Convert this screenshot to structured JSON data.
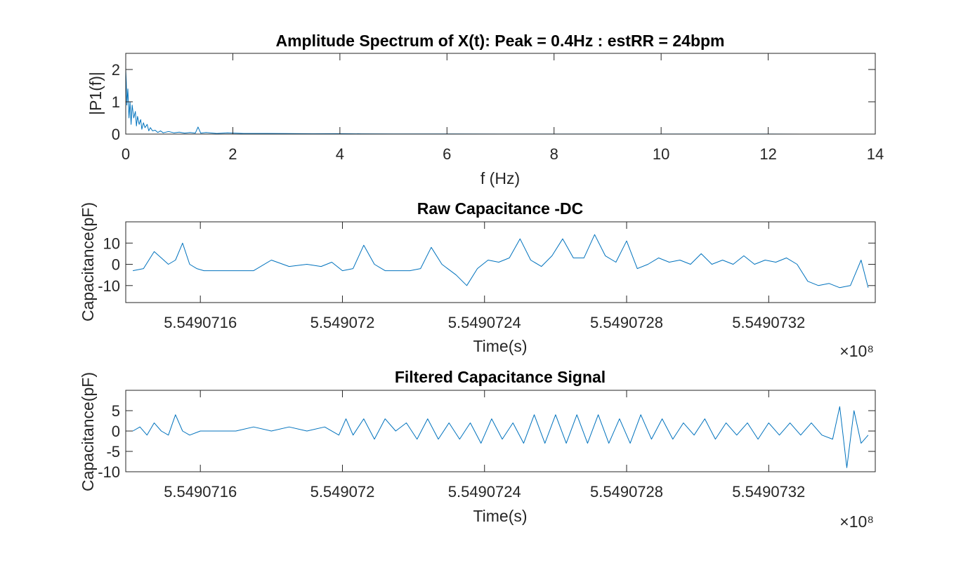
{
  "chart_data": [
    {
      "type": "line",
      "title": "Amplitude Spectrum of X(t): Peak = 0.4Hz : estRR = 24bpm",
      "xlabel": "f (Hz)",
      "ylabel": "|P1(f)|",
      "xlim": [
        0,
        14
      ],
      "ylim": [
        0,
        2.5
      ],
      "xticks": [
        0,
        2,
        4,
        6,
        8,
        10,
        12,
        14
      ],
      "xtick_labels": [
        "0",
        "2",
        "4",
        "6",
        "8",
        "10",
        "12",
        "14"
      ],
      "yticks": [
        0,
        1,
        2
      ],
      "ytick_labels": [
        "0",
        "1",
        "2"
      ],
      "exponent": "",
      "color": "#0072bd",
      "grid": false,
      "series": [
        {
          "x": [
            0,
            0.01,
            0.02,
            0.04,
            0.06,
            0.08,
            0.1,
            0.12,
            0.15,
            0.18,
            0.2,
            0.22,
            0.25,
            0.28,
            0.3,
            0.33,
            0.36,
            0.4,
            0.43,
            0.46,
            0.5,
            0.55,
            0.6,
            0.65,
            0.7,
            0.8,
            0.9,
            1.0,
            1.1,
            1.2,
            1.3,
            1.35,
            1.4,
            1.5,
            1.7,
            1.9,
            2.2,
            2.5,
            3.0,
            3.5,
            4.0,
            4.4,
            5.0,
            6.0,
            7.0,
            8.0,
            10.0,
            12.0,
            13.5
          ],
          "y": [
            2.0,
            1.6,
            0.9,
            1.4,
            0.5,
            1.0,
            0.3,
            0.9,
            0.5,
            0.7,
            0.25,
            0.55,
            0.3,
            0.45,
            0.15,
            0.35,
            0.2,
            0.3,
            0.1,
            0.2,
            0.1,
            0.12,
            0.05,
            0.1,
            0.04,
            0.08,
            0.04,
            0.06,
            0.03,
            0.05,
            0.03,
            0.22,
            0.03,
            0.05,
            0.02,
            0.04,
            0.02,
            0.02,
            0.015,
            0.01,
            0.012,
            0.008,
            0.005,
            0.004,
            0.003,
            0.003,
            0.002,
            0.002,
            0.001
          ]
        }
      ]
    },
    {
      "type": "line",
      "title": "Raw Capacitance -DC",
      "xlabel": "Time(s)",
      "ylabel": "Capacitance(pF)",
      "xlim": [
        554907139,
        554907350
      ],
      "ylim": [
        -18,
        20
      ],
      "xticks": [
        554907160,
        554907200,
        554907240,
        554907280,
        554907320
      ],
      "xtick_labels": [
        "5.5490716",
        "5.549072",
        "5.5490724",
        "5.5490728",
        "5.5490732"
      ],
      "yticks": [
        -10,
        0,
        10
      ],
      "ytick_labels": [
        "-10",
        "0",
        "10"
      ],
      "exponent": "×10⁸",
      "color": "#0072bd",
      "grid": false,
      "series": [
        {
          "x": [
            554907141,
            554907144,
            554907147,
            554907149,
            554907151,
            554907153,
            554907155,
            554907157,
            554907159,
            554907161,
            554907163,
            554907165,
            554907168,
            554907171,
            554907175,
            554907180,
            554907185,
            554907190,
            554907194,
            554907197,
            554907200,
            554907203,
            554907206,
            554907209,
            554907212,
            554907215,
            554907219,
            554907222,
            554907225,
            554907228,
            554907232,
            554907235,
            554907238,
            554907241,
            554907244,
            554907247,
            554907250,
            554907253,
            554907256,
            554907259,
            554907262,
            554907265,
            554907268,
            554907271,
            554907274,
            554907277,
            554907280,
            554907283,
            554907286,
            554907289,
            554907292,
            554907295,
            554907298,
            554907301,
            554907304,
            554907307,
            554907310,
            554907313,
            554907316,
            554907319,
            554907322,
            554907325,
            554907328,
            554907331,
            554907334,
            554907337,
            554907340,
            554907343,
            554907346,
            554907348
          ],
          "y": [
            -3,
            -2,
            6,
            3,
            0,
            2,
            10,
            0,
            -2,
            -3,
            -3,
            -3,
            -3,
            -3,
            -3,
            2,
            -1,
            0,
            -1,
            1,
            -3,
            -2,
            9,
            0,
            -3,
            -3,
            -3,
            -2,
            8,
            0,
            -5,
            -10,
            -2,
            2,
            1,
            3,
            12,
            2,
            -1,
            4,
            12,
            3,
            3,
            14,
            4,
            1,
            11,
            -2,
            0,
            3,
            1,
            2,
            0,
            5,
            0,
            2,
            0,
            4,
            0,
            2,
            1,
            3,
            0,
            -8,
            -10,
            -9,
            -11,
            -10,
            2,
            -11
          ]
        }
      ]
    },
    {
      "type": "line",
      "title": "Filtered Capacitance Signal",
      "xlabel": "Time(s)",
      "ylabel": "Capacitance(pF)",
      "xlim": [
        554907139,
        554907350
      ],
      "ylim": [
        -10,
        10
      ],
      "xticks": [
        554907160,
        554907200,
        554907240,
        554907280,
        554907320
      ],
      "xtick_labels": [
        "5.5490716",
        "5.549072",
        "5.5490724",
        "5.5490728",
        "5.5490732"
      ],
      "yticks": [
        -10,
        -5,
        0,
        5
      ],
      "ytick_labels": [
        "-10",
        "-5",
        "0",
        "5"
      ],
      "exponent": "×10⁸",
      "color": "#0072bd",
      "grid": false,
      "series": [
        {
          "x": [
            554907141,
            554907143,
            554907145,
            554907147,
            554907149,
            554907151,
            554907153,
            554907155,
            554907157,
            554907160,
            554907165,
            554907170,
            554907175,
            554907180,
            554907185,
            554907190,
            554907195,
            554907199,
            554907201,
            554907203,
            554907206,
            554907209,
            554907212,
            554907215,
            554907218,
            554907221,
            554907224,
            554907227,
            554907230,
            554907233,
            554907236,
            554907239,
            554907242,
            554907245,
            554907248,
            554907251,
            554907254,
            554907257,
            554907260,
            554907263,
            554907266,
            554907269,
            554907272,
            554907275,
            554907278,
            554907281,
            554907284,
            554907287,
            554907290,
            554907293,
            554907296,
            554907299,
            554907302,
            554907305,
            554907308,
            554907311,
            554907314,
            554907317,
            554907320,
            554907323,
            554907326,
            554907329,
            554907332,
            554907335,
            554907338,
            554907340,
            554907342,
            554907344,
            554907346,
            554907348
          ],
          "y": [
            0,
            1,
            -1,
            2,
            0,
            -1,
            4,
            0,
            -1,
            0,
            0,
            0,
            1,
            0,
            1,
            0,
            1,
            -1,
            3,
            -1,
            3,
            -2,
            3,
            0,
            2,
            -2,
            3,
            -2,
            2,
            -2,
            2,
            -3,
            3,
            -2,
            2,
            -3,
            4,
            -3,
            4,
            -3,
            4,
            -3,
            4,
            -3,
            3,
            -3,
            4,
            -2,
            3,
            -2,
            2,
            -1,
            3,
            -2,
            2,
            -1,
            2,
            -2,
            2,
            -1,
            2,
            -1,
            2,
            -1,
            -2,
            6,
            -9,
            5,
            -3,
            -1
          ]
        }
      ]
    }
  ]
}
